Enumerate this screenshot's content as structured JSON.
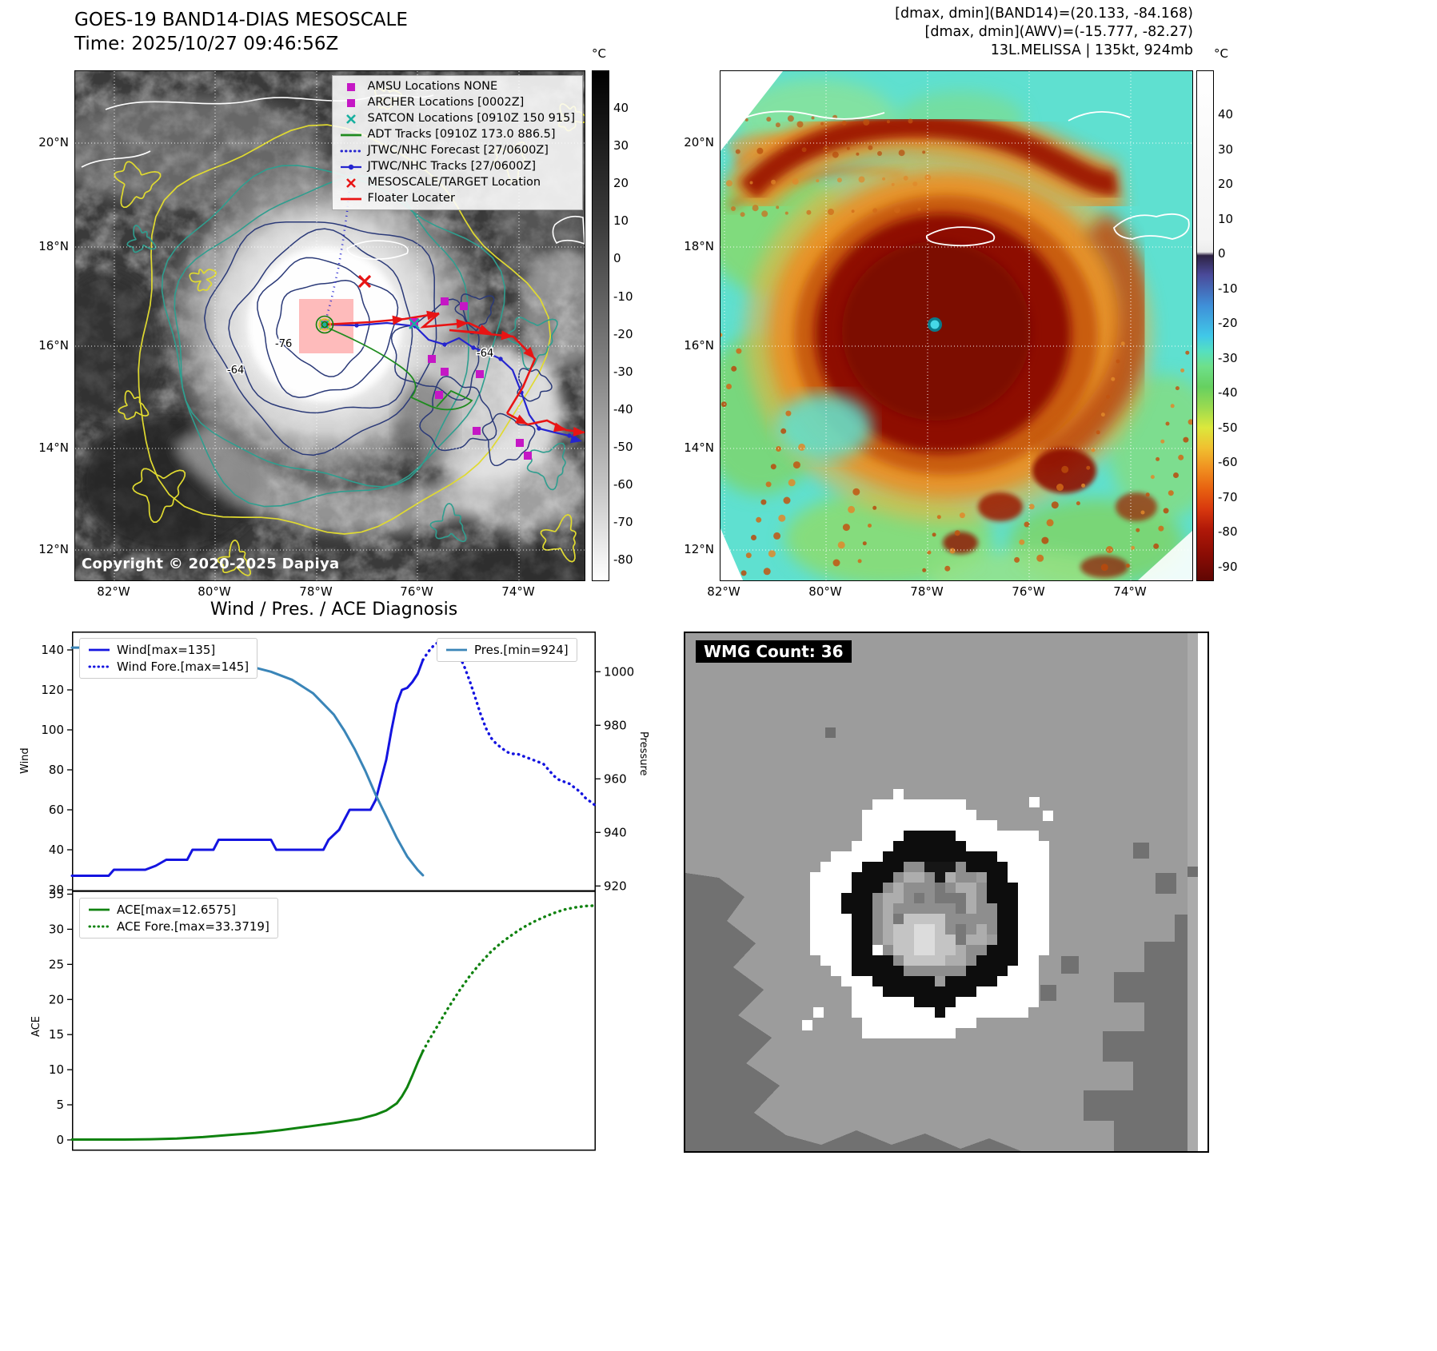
{
  "panel_band14": {
    "title": "GOES-19 BAND14-DIAS MESOSCALE",
    "time_line": "Time: 2025/10/27 09:46:56Z",
    "copyright": "Copyright © 2020-2025 Dapiya",
    "colorbar_unit": "°C",
    "colorbar_ticks": [
      "40",
      "30",
      "20",
      "10",
      "0",
      "-10",
      "-20",
      "-30",
      "-40",
      "-50",
      "-60",
      "-70",
      "-80"
    ],
    "colorbar_stops": [
      [
        0,
        "#000000"
      ],
      [
        0.3,
        "#3c3c3c"
      ],
      [
        0.55,
        "#7a7a7a"
      ],
      [
        0.8,
        "#c0c0c0"
      ],
      [
        1,
        "#ffffff"
      ]
    ],
    "lat_ticks": [
      "20°N",
      "18°N",
      "16°N",
      "14°N",
      "12°N"
    ],
    "lon_ticks": [
      "82°W",
      "80°W",
      "78°W",
      "76°W",
      "74°W"
    ],
    "contour_labels": [
      "-64",
      "-76",
      "-64"
    ],
    "legend_items": [
      {
        "label": "AMSU Locations NONE",
        "marker": "square",
        "color": "#c517c5"
      },
      {
        "label": "ARCHER Locations [0002Z]",
        "marker": "square",
        "color": "#c517c5"
      },
      {
        "label": "SATCON Locations [0910Z 150 915]",
        "marker": "x",
        "color": "#17b0a0"
      },
      {
        "label": "ADT Tracks [0910Z 173.0 886.5]",
        "marker": "line",
        "color": "#1f8b1f"
      },
      {
        "label": "JTWC/NHC Forecast [27/0600Z]",
        "marker": "dotted",
        "color": "#2525cf"
      },
      {
        "label": "JTWC/NHC Tracks [27/0600Z]",
        "marker": "line-dot",
        "color": "#2525cf"
      },
      {
        "label": "MESOSCALE/TARGET Location",
        "marker": "x",
        "color": "#e81414"
      },
      {
        "label": "Floater Locater",
        "marker": "line",
        "color": "#e81414"
      }
    ]
  },
  "panel_awv": {
    "header_lines": [
      "[dmax, dmin](BAND14)=(20.133, -84.168)",
      "[dmax, dmin](AWV)=(-15.777, -82.27)",
      "13L.MELISSA | 135kt, 924mb"
    ],
    "colorbar_unit": "°C",
    "colorbar_ticks": [
      "40",
      "30",
      "20",
      "10",
      "0",
      "-10",
      "-20",
      "-30",
      "-40",
      "-50",
      "-60",
      "-70",
      "-80",
      "-90"
    ],
    "colorbar_stops": [
      [
        0,
        "#ffffff"
      ],
      [
        0.33,
        "#f4f4f4"
      ],
      [
        0.355,
        "#ececec"
      ],
      [
        0.362,
        "#2e2344"
      ],
      [
        0.4,
        "#4a4a9a"
      ],
      [
        0.46,
        "#3f8fd8"
      ],
      [
        0.52,
        "#40c8e8"
      ],
      [
        0.55,
        "#55e0c0"
      ],
      [
        0.58,
        "#6ee08a"
      ],
      [
        0.62,
        "#66d060"
      ],
      [
        0.66,
        "#9ada50"
      ],
      [
        0.7,
        "#dce83c"
      ],
      [
        0.74,
        "#f0c030"
      ],
      [
        0.78,
        "#f09020"
      ],
      [
        0.82,
        "#e86210"
      ],
      [
        0.86,
        "#d8380e"
      ],
      [
        0.9,
        "#b01808"
      ],
      [
        0.95,
        "#8a0c04"
      ],
      [
        1,
        "#600603"
      ]
    ],
    "lat_ticks": [
      "20°N",
      "18°N",
      "16°N",
      "14°N",
      "12°N"
    ],
    "lon_ticks": [
      "82°W",
      "80°W",
      "78°W",
      "76°W",
      "74°W"
    ]
  },
  "wmg": {
    "count_label": "WMG Count: 36"
  },
  "chart_data": [
    {
      "type": "line",
      "title": "Wind / Pres. / ACE Diagnosis",
      "ylabel_left": "Wind",
      "ylabel_right": "Pressure",
      "ylim_left": [
        19.2,
        149.2
      ],
      "ylim_right": [
        918,
        1015
      ],
      "yticks_left": [
        20,
        40,
        60,
        80,
        100,
        120,
        140
      ],
      "yticks_right": [
        920,
        940,
        960,
        980,
        1000
      ],
      "xlim": [
        0,
        100
      ],
      "series": [
        {
          "name": "Wind[max=135]",
          "style": "solid",
          "color": "#1414e0",
          "axis": "left",
          "points": [
            [
              0,
              27
            ],
            [
              7,
              27
            ],
            [
              8,
              30
            ],
            [
              14,
              30
            ],
            [
              16,
              32
            ],
            [
              18,
              35
            ],
            [
              22,
              35
            ],
            [
              23,
              40
            ],
            [
              27,
              40
            ],
            [
              28,
              45
            ],
            [
              38,
              45
            ],
            [
              39,
              40
            ],
            [
              48,
              40
            ],
            [
              49,
              45
            ],
            [
              51,
              50
            ],
            [
              52,
              55
            ],
            [
              53,
              60
            ],
            [
              57,
              60
            ],
            [
              58,
              65
            ],
            [
              59,
              75
            ],
            [
              60,
              85
            ],
            [
              61,
              100
            ],
            [
              62,
              113
            ],
            [
              63,
              120
            ],
            [
              64,
              121
            ],
            [
              65,
              124
            ],
            [
              66,
              128
            ],
            [
              67,
              135
            ]
          ]
        },
        {
          "name": "Wind Fore.[max=145]",
          "style": "dotted",
          "color": "#1414e0",
          "axis": "left",
          "points": [
            [
              67,
              135
            ],
            [
              68,
              139
            ],
            [
              69,
              142
            ],
            [
              70,
              144
            ],
            [
              71,
              145
            ],
            [
              72,
              144
            ],
            [
              73,
              141
            ],
            [
              74,
              137
            ],
            [
              75,
              131
            ],
            [
              76,
              124
            ],
            [
              77,
              116
            ],
            [
              78,
              108
            ],
            [
              79,
              101
            ],
            [
              80,
              96
            ],
            [
              81,
              93
            ],
            [
              82,
              91
            ],
            [
              83,
              89
            ],
            [
              84,
              88
            ],
            [
              85,
              88
            ],
            [
              86,
              87
            ],
            [
              87,
              86
            ],
            [
              88,
              85
            ],
            [
              89,
              84
            ],
            [
              90,
              83
            ],
            [
              91,
              80
            ],
            [
              92,
              77
            ],
            [
              93,
              75
            ],
            [
              94,
              74
            ],
            [
              95,
              73
            ],
            [
              96,
              71
            ],
            [
              97,
              69
            ],
            [
              98,
              66
            ],
            [
              99,
              64
            ],
            [
              100,
              62
            ]
          ]
        },
        {
          "name": "Pres.[min=924]",
          "style": "solid",
          "color": "#3a85b8",
          "axis": "right",
          "points": [
            [
              0,
              1009
            ],
            [
              6,
              1009
            ],
            [
              10,
              1008
            ],
            [
              14,
              1008
            ],
            [
              18,
              1007
            ],
            [
              22,
              1006
            ],
            [
              26,
              1005
            ],
            [
              30,
              1004
            ],
            [
              34,
              1002
            ],
            [
              38,
              1000
            ],
            [
              42,
              997
            ],
            [
              46,
              992
            ],
            [
              50,
              984
            ],
            [
              52,
              978
            ],
            [
              54,
              971
            ],
            [
              56,
              963
            ],
            [
              58,
              954
            ],
            [
              60,
              946
            ],
            [
              62,
              938
            ],
            [
              64,
              931
            ],
            [
              66,
              926
            ],
            [
              67,
              924
            ]
          ]
        }
      ]
    },
    {
      "type": "line",
      "ylabel_left": "ACE",
      "ylim_left": [
        -1.6,
        35.4
      ],
      "yticks_left": [
        0,
        5,
        10,
        15,
        20,
        25,
        30,
        35
      ],
      "xlim": [
        0,
        100
      ],
      "series": [
        {
          "name": "ACE[max=12.6575]",
          "style": "solid",
          "color": "#0f820f",
          "axis": "left",
          "points": [
            [
              0,
              0.05
            ],
            [
              10,
              0.05
            ],
            [
              15,
              0.1
            ],
            [
              20,
              0.2
            ],
            [
              25,
              0.4
            ],
            [
              30,
              0.7
            ],
            [
              35,
              1.0
            ],
            [
              40,
              1.4
            ],
            [
              45,
              1.9
            ],
            [
              50,
              2.4
            ],
            [
              55,
              3.0
            ],
            [
              58,
              3.6
            ],
            [
              60,
              4.2
            ],
            [
              62,
              5.2
            ],
            [
              63,
              6.2
            ],
            [
              64,
              7.5
            ],
            [
              65,
              9.2
            ],
            [
              66,
              11.0
            ],
            [
              67,
              12.66
            ]
          ]
        },
        {
          "name": "ACE Fore.[max=33.3719]",
          "style": "dotted",
          "color": "#0f820f",
          "axis": "left",
          "points": [
            [
              67,
              12.66
            ],
            [
              68,
              14.0
            ],
            [
              70,
              16.5
            ],
            [
              72,
              19.0
            ],
            [
              74,
              21.3
            ],
            [
              76,
              23.4
            ],
            [
              78,
              25.2
            ],
            [
              80,
              26.8
            ],
            [
              82,
              28.1
            ],
            [
              84,
              29.2
            ],
            [
              86,
              30.2
            ],
            [
              88,
              31.0
            ],
            [
              90,
              31.7
            ],
            [
              92,
              32.3
            ],
            [
              94,
              32.8
            ],
            [
              96,
              33.1
            ],
            [
              98,
              33.3
            ],
            [
              100,
              33.37
            ]
          ]
        }
      ]
    }
  ]
}
